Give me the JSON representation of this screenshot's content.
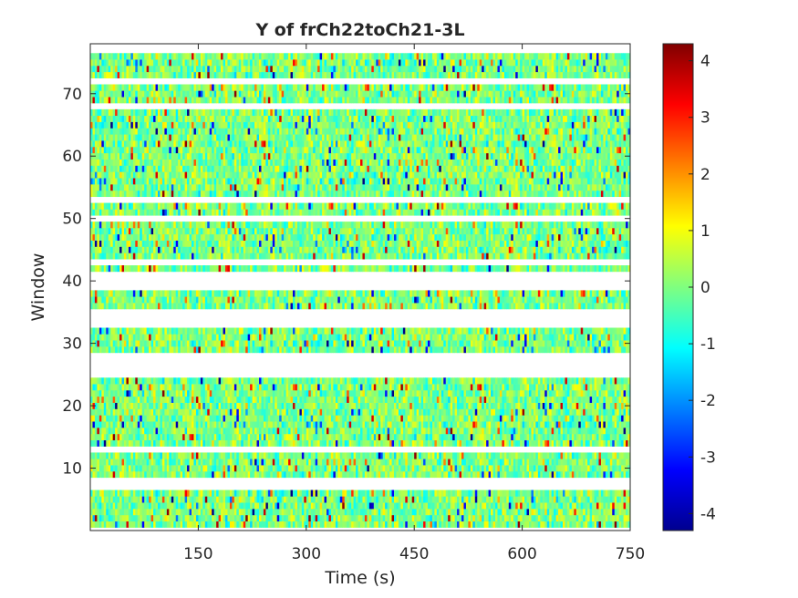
{
  "chart_data": {
    "type": "heatmap",
    "title": "Y of frCh22toCh21-3L",
    "xlabel": "Time (s)",
    "ylabel": "Window",
    "xlim": [
      0,
      750
    ],
    "ylim": [
      0,
      78
    ],
    "clim": [
      -4.3,
      4.3
    ],
    "colormap": "jet",
    "x_ticks": [
      150,
      300,
      450,
      600,
      750
    ],
    "y_ticks": [
      10,
      20,
      30,
      40,
      50,
      60,
      70
    ],
    "colorbar_ticks": [
      -4,
      -3,
      -2,
      -1,
      0,
      1,
      2,
      3,
      4
    ],
    "time_bins": 240,
    "windows_with_data": [
      [
        1,
        6
      ],
      [
        9,
        12
      ],
      [
        14,
        24
      ],
      [
        29,
        32
      ],
      [
        36,
        38
      ],
      [
        42,
        42
      ],
      [
        44,
        49
      ],
      [
        51,
        52
      ],
      [
        54,
        67
      ],
      [
        69,
        71
      ],
      [
        73,
        76
      ]
    ],
    "value_summary": "near-zero noise (-1 to 1, greens and yellows) with scattered extreme excursions reaching about ±4"
  }
}
